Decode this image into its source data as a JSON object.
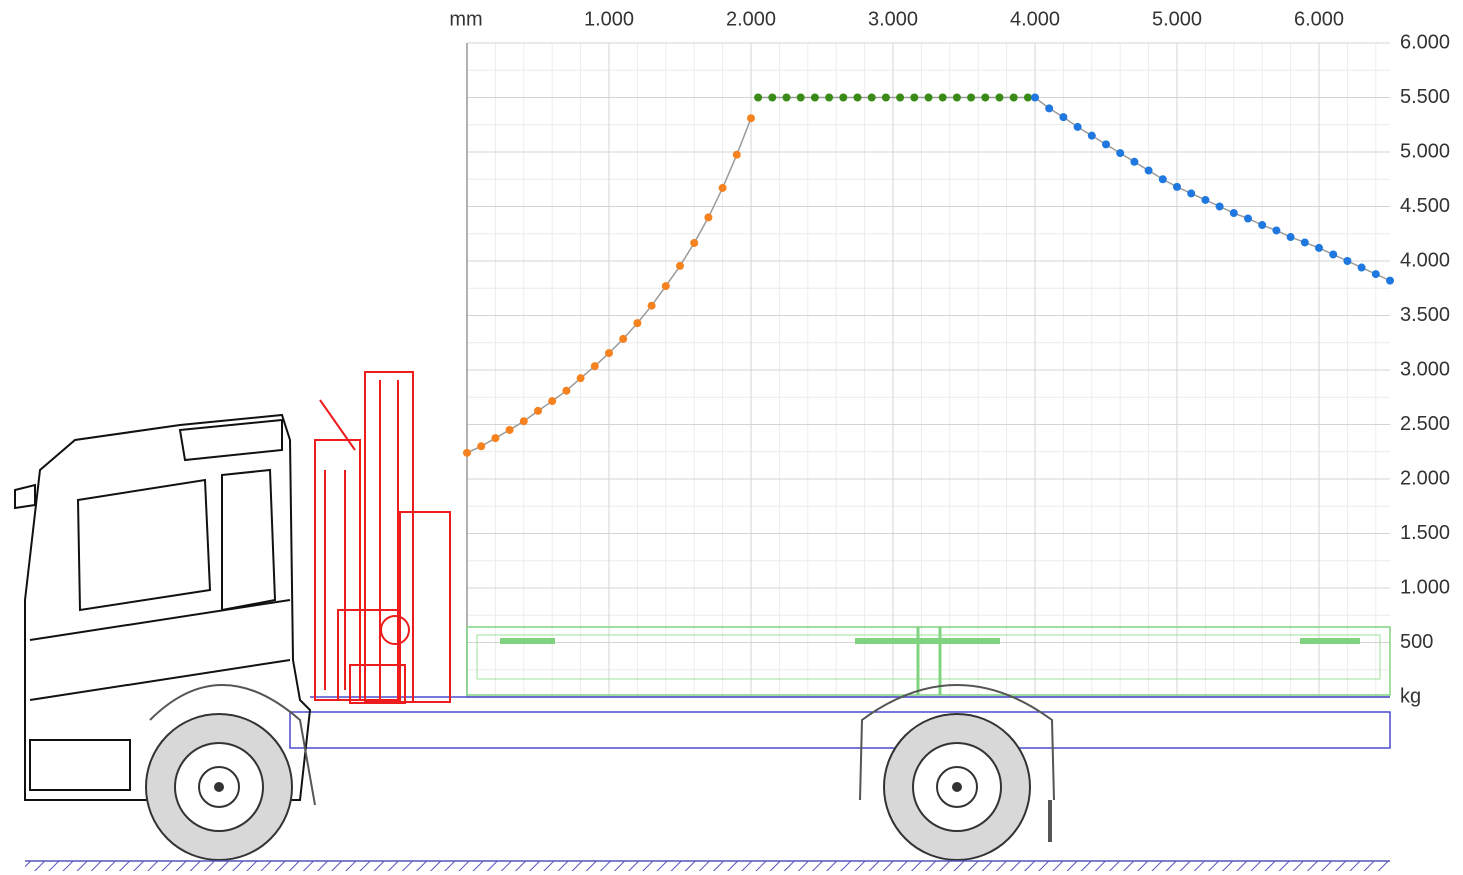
{
  "chart_data": {
    "type": "line",
    "x_label": "mm",
    "y_label": "kg",
    "xlim": [
      0,
      6500
    ],
    "ylim": [
      0,
      6000
    ],
    "xticks": [
      {
        "value": 1000,
        "label": "1.000"
      },
      {
        "value": 2000,
        "label": "2.000"
      },
      {
        "value": 3000,
        "label": "3.000"
      },
      {
        "value": 4000,
        "label": "4.000"
      },
      {
        "value": 5000,
        "label": "5.000"
      },
      {
        "value": 6000,
        "label": "6.000"
      }
    ],
    "yticks": [
      500,
      {
        "value": 1000,
        "label": "1.000"
      },
      {
        "value": 1500,
        "label": "1.500"
      },
      {
        "value": 2000,
        "label": "2.000"
      },
      {
        "value": 2500,
        "label": "2.500"
      },
      {
        "value": 3000,
        "label": "3.000"
      },
      {
        "value": 3500,
        "label": "3.500"
      },
      {
        "value": 4000,
        "label": "4.000"
      },
      {
        "value": 4500,
        "label": "4.500"
      },
      {
        "value": 5000,
        "label": "5.000"
      },
      {
        "value": 5500,
        "label": "5.500"
      },
      {
        "value": 6000,
        "label": "6.000"
      }
    ],
    "grid": true,
    "line_color": "#9a9a9a",
    "series": [
      {
        "color": "#f5821f",
        "x": [
          0,
          100,
          200,
          300,
          400,
          500,
          600,
          700,
          800,
          900,
          1000,
          1100,
          1200,
          1300,
          1400,
          1500,
          1600,
          1700,
          1800,
          1900,
          2000
        ],
        "values": [
          2240,
          2300,
          2375,
          2450,
          2530,
          2625,
          2715,
          2810,
          2925,
          3035,
          3155,
          3285,
          3430,
          3590,
          3770,
          3955,
          4165,
          4400,
          4670,
          4975,
          5310
        ]
      },
      {
        "color": "#3a8a17",
        "x": [
          2050,
          2150,
          2250,
          2350,
          2450,
          2550,
          2650,
          2750,
          2850,
          2950,
          3050,
          3150,
          3250,
          3350,
          3450,
          3550,
          3650,
          3750,
          3850,
          3950
        ],
        "values": [
          5500,
          5500,
          5500,
          5500,
          5500,
          5500,
          5500,
          5500,
          5500,
          5500,
          5500,
          5500,
          5500,
          5500,
          5500,
          5500,
          5500,
          5500,
          5500,
          5500
        ]
      },
      {
        "color": "#1f78e0",
        "x": [
          4000,
          4100,
          4200,
          4300,
          4400,
          4500,
          4600,
          4700,
          4800,
          4900,
          5000,
          5100,
          5200,
          5300,
          5400,
          5500,
          5600,
          5700,
          5800,
          5900,
          6000,
          6100,
          6200,
          6300,
          6400,
          6500
        ],
        "values": [
          5500,
          5400,
          5320,
          5230,
          5150,
          5070,
          4990,
          4910,
          4830,
          4750,
          4680,
          4620,
          4560,
          4500,
          4440,
          4390,
          4330,
          4280,
          4220,
          4170,
          4120,
          4060,
          4000,
          3940,
          3880,
          3820
        ]
      }
    ]
  }
}
